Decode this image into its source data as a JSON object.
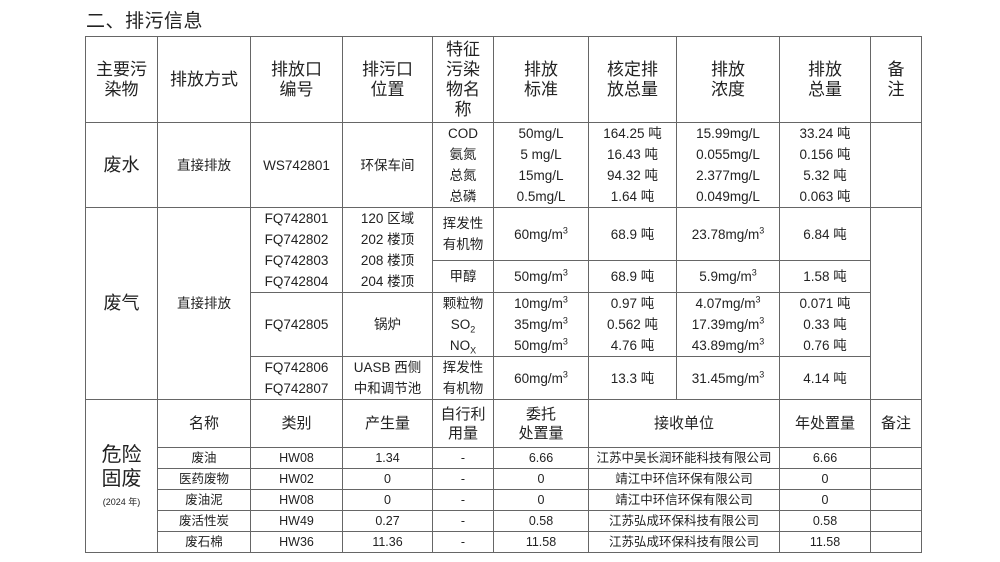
{
  "title": "二、排污信息",
  "header": [
    "主要污染物",
    "排放方式",
    "排放口编号",
    "排污口位置",
    "特征污染物名称",
    "排放标准",
    "核定排放总量",
    "排放浓度",
    "排放总量",
    "备注"
  ],
  "water": {
    "category": "废水",
    "method": "直接排放",
    "outlet": "WS742801",
    "location": "环保车间",
    "pollutants": [
      "COD",
      "氨氮",
      "总氮",
      "总磷"
    ],
    "standard": [
      "50mg/L",
      "5 mg/L",
      "15mg/L",
      "0.5mg/L"
    ],
    "approved": [
      "164.25 吨",
      "16.43 吨",
      "94.32 吨",
      "1.64 吨"
    ],
    "concentration": [
      "15.99mg/L",
      "0.055mg/L",
      "2.377mg/L",
      "0.049mg/L"
    ],
    "total": [
      "33.24 吨",
      "0.156 吨",
      "5.32 吨",
      "0.063 吨"
    ]
  },
  "gas": {
    "category": "废气",
    "method": "直接排放",
    "group1": {
      "outlets": [
        "FQ742801",
        "FQ742802",
        "FQ742803",
        "FQ742804"
      ],
      "locations": [
        "120 区域",
        "202 楼顶",
        "208 楼顶",
        "204 楼顶"
      ],
      "rows": [
        {
          "pollutant": [
            "挥发性",
            "有机物"
          ],
          "standard": "60mg/m",
          "approved": "68.9 吨",
          "concentration": "23.78mg/m",
          "total": "6.84 吨"
        },
        {
          "pollutant": [
            "甲醇"
          ],
          "standard": "50mg/m",
          "approved": "68.9 吨",
          "concentration": "5.9mg/m",
          "total": "1.58 吨"
        }
      ]
    },
    "group2": {
      "outlet": "FQ742805",
      "location": "锅炉",
      "pollutants": [
        "颗粒物",
        "SO",
        "NO"
      ],
      "pollutant_subs": [
        "",
        "2",
        "X"
      ],
      "standard": [
        "10mg/m",
        "35mg/m",
        "50mg/m"
      ],
      "approved": [
        "0.97 吨",
        "0.562 吨",
        "4.76 吨"
      ],
      "concentration": [
        "4.07mg/m",
        "17.39mg/m",
        "43.89mg/m"
      ],
      "total": [
        "0.071 吨",
        "0.33 吨",
        "0.76 吨"
      ]
    },
    "group3": {
      "outlets": [
        "FQ742806",
        "FQ742807"
      ],
      "locations": [
        "UASB 西侧",
        "中和调节池"
      ],
      "pollutant": [
        "挥发性",
        "有机物"
      ],
      "standard": "60mg/m",
      "approved": "13.3 吨",
      "concentration": "31.45mg/m",
      "total": "4.14 吨"
    },
    "unit_sup": "3"
  },
  "hazardous": {
    "category": [
      "危险",
      "固废"
    ],
    "year": "(2024 年)",
    "header": [
      "名称",
      "类别",
      "产生量",
      "自行利用量",
      "委托处置量",
      "接收单位",
      "年处置量",
      "备注"
    ],
    "header_lines": {
      "self_use": [
        "自行利",
        "用量"
      ],
      "entrusted": [
        "委托",
        "处置量"
      ]
    },
    "rows": [
      {
        "name": "废油",
        "type": "HW08",
        "produced": "1.34",
        "self_use": "-",
        "entrusted": "6.66",
        "receiver": "江苏中吴长润环能科技有限公司",
        "annual": "6.66"
      },
      {
        "name": "医药废物",
        "type": "HW02",
        "produced": "0",
        "self_use": "-",
        "entrusted": "0",
        "receiver": "靖江中环信环保有限公司",
        "annual": "0"
      },
      {
        "name": "废油泥",
        "type": "HW08",
        "produced": "0",
        "self_use": "-",
        "entrusted": "0",
        "receiver": "靖江中环信环保有限公司",
        "annual": "0"
      },
      {
        "name": "废活性炭",
        "type": "HW49",
        "produced": "0.27",
        "self_use": "-",
        "entrusted": "0.58",
        "receiver": "江苏弘成环保科技有限公司",
        "annual": "0.58"
      },
      {
        "name": "废石棉",
        "type": "HW36",
        "produced": "11.36",
        "self_use": "-",
        "entrusted": "11.58",
        "receiver": "江苏弘成环保科技有限公司",
        "annual": "11.58"
      }
    ]
  }
}
